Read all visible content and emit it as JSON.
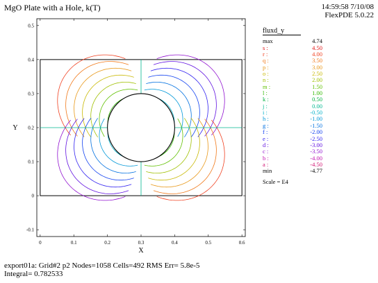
{
  "header": {
    "title": "MgO Plate with a Hole, k(T)",
    "timestamp": "14:59:58 7/10/08",
    "version": "FlexPDE 5.0.22"
  },
  "legend": {
    "title": "fluxd_y",
    "scale": "Scale = E4",
    "entries": [
      {
        "name": "max",
        "value": "4.74",
        "color": "#000000"
      },
      {
        "name": "s :",
        "value": "4.50",
        "color": "#e01010"
      },
      {
        "name": "r :",
        "value": "4.00",
        "color": "#f04020"
      },
      {
        "name": "q :",
        "value": "3.50",
        "color": "#f07818"
      },
      {
        "name": "p :",
        "value": "3.00",
        "color": "#e89818"
      },
      {
        "name": "o :",
        "value": "2.50",
        "color": "#c8b800"
      },
      {
        "name": "n :",
        "value": "2.00",
        "color": "#a0c000"
      },
      {
        "name": "m :",
        "value": "1.50",
        "color": "#60c000"
      },
      {
        "name": "l :",
        "value": "1.00",
        "color": "#30b800"
      },
      {
        "name": "k :",
        "value": "0.50",
        "color": "#00b040"
      },
      {
        "name": "j :",
        "value": "0.00",
        "color": "#00b890"
      },
      {
        "name": "i :",
        "value": "-0.50",
        "color": "#00b0c8"
      },
      {
        "name": "h :",
        "value": "-1.00",
        "color": "#0098d8"
      },
      {
        "name": "g :",
        "value": "-1.50",
        "color": "#0070e0"
      },
      {
        "name": "f :",
        "value": "-2.00",
        "color": "#1040f0"
      },
      {
        "name": "e :",
        "value": "-2.50",
        "color": "#3020f0"
      },
      {
        "name": "d :",
        "value": "-3.00",
        "color": "#6010e0"
      },
      {
        "name": "c :",
        "value": "-3.50",
        "color": "#9010d0"
      },
      {
        "name": "b :",
        "value": "-4.00",
        "color": "#c010b0"
      },
      {
        "name": "a :",
        "value": "-4.50",
        "color": "#d01070"
      },
      {
        "name": "min",
        "value": "-4.77",
        "color": "#000000"
      }
    ]
  },
  "footer": {
    "line1": "export01a:  Grid#2  p2  Nodes=1058 Cells=492 RMS Err= 5.8e-5",
    "line2": "Integral=  0.782533"
  },
  "chart_data": {
    "type": "contour",
    "title": "MgO Plate with a Hole, k(T)",
    "variable": "fluxd_y",
    "xlabel": "X",
    "ylabel": "Y",
    "xlim": [
      -0.01,
      0.61
    ],
    "ylim": [
      -0.12,
      0.52
    ],
    "x_ticks": [
      "0",
      "0.1",
      "0.2",
      "0.3",
      "0.4",
      "0.5",
      "0.6"
    ],
    "y_ticks": [
      "-0.1",
      "0",
      "0.1",
      "0.2",
      "0.3",
      "0.4",
      "0.5"
    ],
    "plate": {
      "x": [
        0,
        0.6
      ],
      "y": [
        0,
        0.4
      ]
    },
    "hole": {
      "cx": 0.3,
      "cy": 0.2,
      "r": 0.1
    },
    "grid": false,
    "contour_scale": "E4",
    "max": 4.74,
    "min": -4.77
  }
}
